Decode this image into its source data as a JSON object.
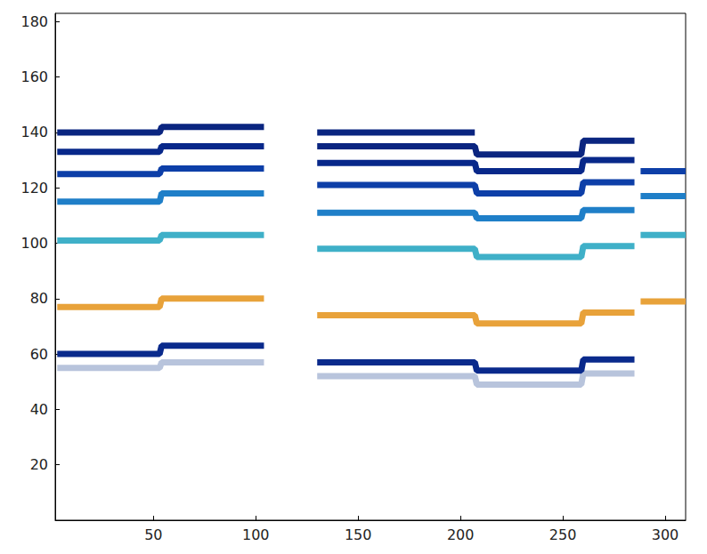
{
  "chart_data": {
    "type": "line",
    "x": [
      3,
      53,
      54,
      104,
      117,
      130,
      207,
      208,
      259,
      260,
      285,
      287,
      288,
      310
    ],
    "series": [
      {
        "color": "#b8c4dc",
        "values": [
          55,
          55,
          57,
          57,
          null,
          52,
          52,
          49,
          49,
          53,
          53,
          null,
          null,
          null
        ]
      },
      {
        "color": "#0a2a8c",
        "values": [
          60,
          60,
          63,
          63,
          null,
          57,
          57,
          54,
          54,
          58,
          58,
          null,
          null,
          null
        ]
      },
      {
        "color": "#e8a23a",
        "values": [
          77,
          77,
          80,
          80,
          null,
          74,
          74,
          71,
          71,
          75,
          75,
          null,
          79,
          79
        ]
      },
      {
        "color": "#3fb0c8",
        "values": [
          101,
          101,
          103,
          103,
          null,
          98,
          98,
          95,
          95,
          99,
          99,
          null,
          103,
          103
        ]
      },
      {
        "color": "#1f7fc8",
        "values": [
          115,
          115,
          118,
          118,
          null,
          111,
          111,
          109,
          109,
          112,
          112,
          null,
          117,
          117
        ]
      },
      {
        "color": "#0d3fa8",
        "values": [
          125,
          125,
          127,
          127,
          null,
          121,
          121,
          118,
          118,
          122,
          122,
          null,
          126,
          126
        ]
      },
      {
        "color": "#08288a",
        "values": [
          133,
          133,
          135,
          135,
          null,
          129,
          129,
          126,
          126,
          130,
          130,
          null,
          null,
          null
        ]
      },
      {
        "color": "#0a2580",
        "values": [
          140,
          140,
          142,
          142,
          null,
          135,
          135,
          132,
          132,
          137,
          137,
          null,
          null,
          null
        ]
      },
      {
        "color": "#0a2580",
        "values": [
          null,
          null,
          null,
          null,
          null,
          140,
          140,
          null,
          null,
          null,
          null,
          null,
          null,
          null
        ]
      }
    ],
    "xlim": [
      2,
      310
    ],
    "xticks": [
      50,
      100,
      150,
      200,
      250,
      300
    ],
    "ylim": [
      0,
      183
    ],
    "yticks": [
      20,
      40,
      60,
      80,
      100,
      120,
      140,
      160,
      180
    ],
    "grid": false
  }
}
